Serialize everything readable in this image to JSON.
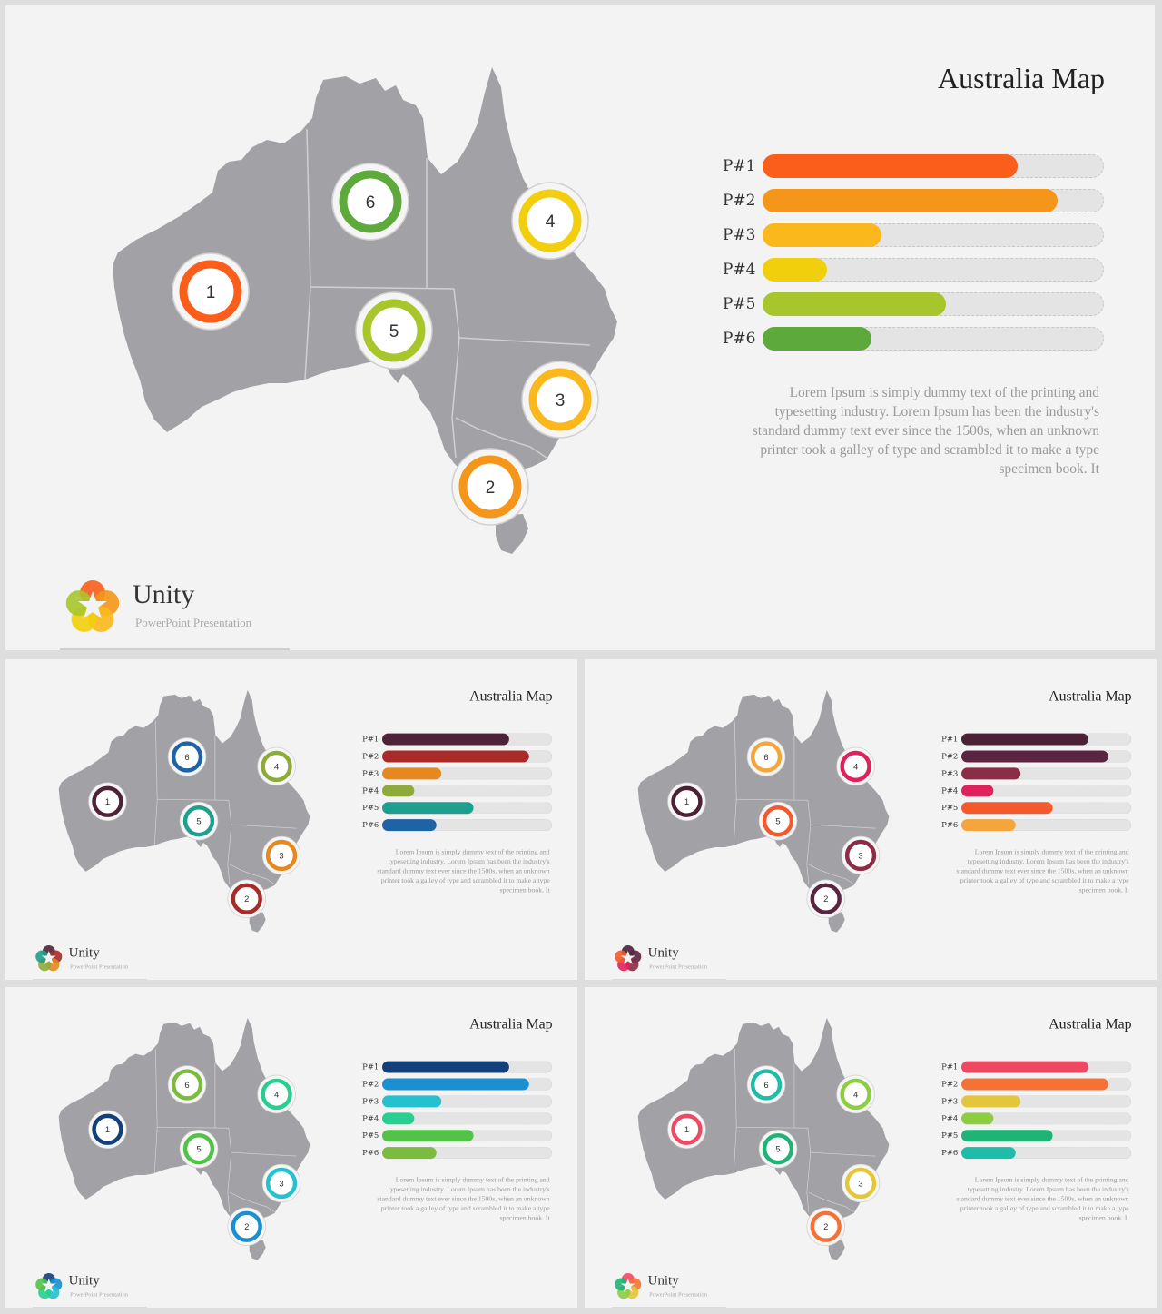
{
  "slide_template": {
    "title": "Australia Map",
    "bar_labels": [
      "P#1",
      "P#2",
      "P#3",
      "P#4",
      "P#5",
      "P#6"
    ],
    "bar_values": [
      0.75,
      0.87,
      0.35,
      0.19,
      0.54,
      0.32
    ],
    "marker_numbers": [
      "1",
      "2",
      "3",
      "4",
      "5",
      "6"
    ],
    "body": "Lorem Ipsum is simply dummy text of the printing and typesetting industry. Lorem Ipsum has been the industry's standard dummy text ever since the 1500s, when an unknown printer took a galley of type and scrambled it to make a type specimen book. It",
    "brand": "Unity",
    "brand_sub": "PowerPoint Presentation"
  },
  "slides": [
    {
      "name": "slide-main",
      "palette": [
        "#fb5e1b",
        "#f5961a",
        "#fbb81c",
        "#f2cf0c",
        "#a8c52b",
        "#5ea93b"
      ]
    },
    {
      "name": "slide-dark-red",
      "palette": [
        "#4e2238",
        "#a92b27",
        "#e5891f",
        "#8eab3a",
        "#1f9f8e",
        "#1e63a6"
      ]
    },
    {
      "name": "slide-plum",
      "palette": [
        "#4a2135",
        "#5b2440",
        "#8c2c47",
        "#e0215e",
        "#f3592c",
        "#f4a53c"
      ]
    },
    {
      "name": "slide-blue-green",
      "palette": [
        "#133f7b",
        "#1a8fd2",
        "#26c1cf",
        "#27cf90",
        "#53c248",
        "#7bbb3e"
      ]
    },
    {
      "name": "slide-pink-teal",
      "palette": [
        "#f04863",
        "#f57236",
        "#e3c639",
        "#8dcd42",
        "#1fb377",
        "#1fbda9"
      ]
    }
  ]
}
